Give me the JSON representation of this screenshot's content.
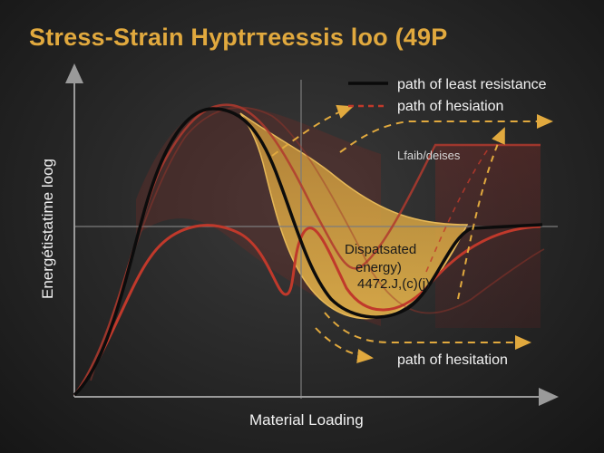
{
  "chart_data": {
    "type": "line",
    "title": "Stress-Strain Hyptrтеessis loo (49P",
    "xlabel": "Material Loading",
    "ylabel": "Energétistatime loog",
    "legend": [
      {
        "label": "path of least resistance",
        "color": "#111111",
        "style": "solid"
      },
      {
        "label": "path of hesiation",
        "color": "#c0392b",
        "style": "dashed-arrow"
      }
    ],
    "annotations": {
      "upper_right": "Lfaib/deises",
      "energy_line1": "Dispatsated",
      "energy_line2": "energy)",
      "energy_line3": "4472.J,(c)(j)",
      "bottom_path": "path of hesitation"
    },
    "grid": false,
    "colors": {
      "accent": "#e1a93e",
      "red": "#c0392b",
      "fill": "#d9a441"
    }
  }
}
